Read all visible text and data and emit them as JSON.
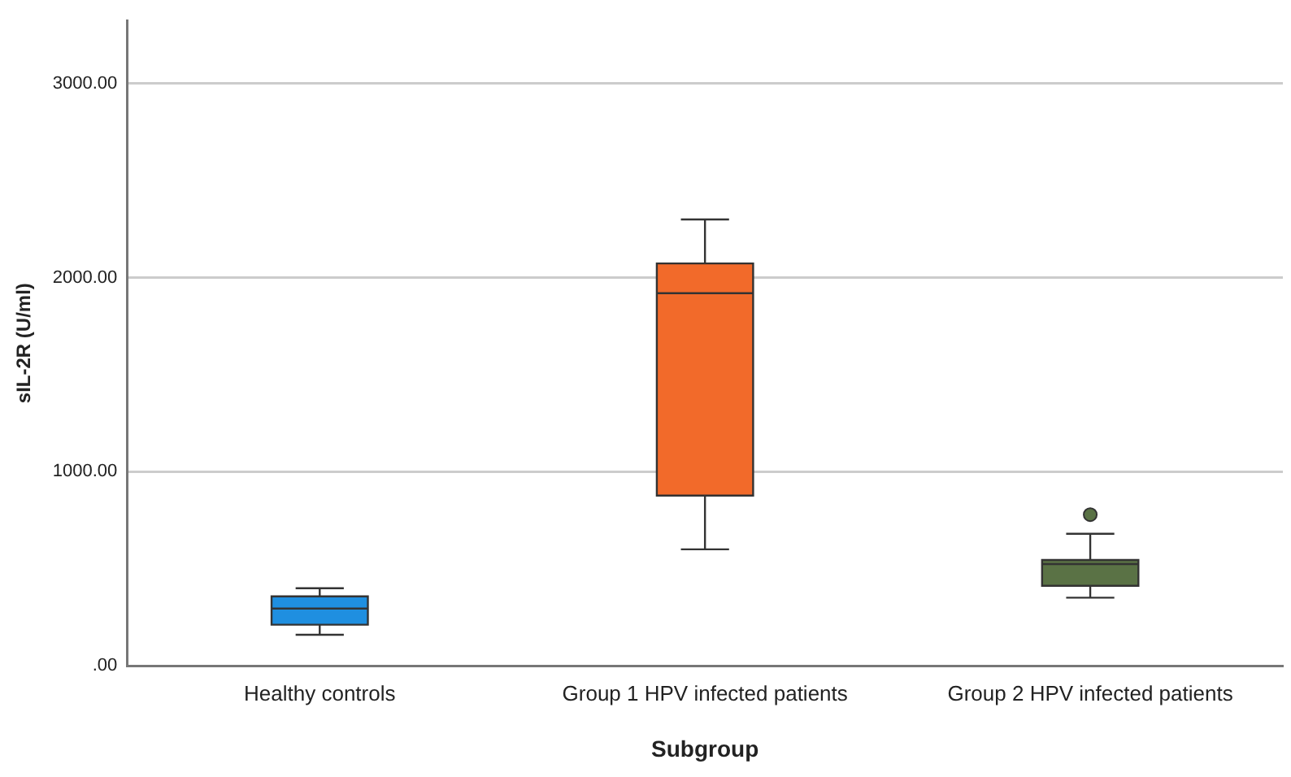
{
  "chart_data": {
    "type": "box",
    "xlabel": "Subgroup",
    "ylabel": "sIL-2R (U/ml)",
    "categories": [
      "Healthy controls",
      "Group 1 HPV infected patients",
      "Group 2 HPV infected patients"
    ],
    "colors": [
      "#1f8fe0",
      "#f26a2a",
      "#5a7245"
    ],
    "boxes": [
      {
        "low": 160,
        "q1": 212,
        "median": 295,
        "q3": 358,
        "high": 400
      },
      {
        "low": 600,
        "q1": 877,
        "median": 1920,
        "q3": 2073,
        "high": 2300
      },
      {
        "low": 351,
        "q1": 412,
        "median": 524,
        "q3": 545,
        "high": 680,
        "outliers": [
          779
        ]
      }
    ],
    "ylim": [
      0,
      3325
    ],
    "yticks": [
      {
        "value": 0,
        "label": ".00"
      },
      {
        "value": 1000,
        "label": "1000.00"
      },
      {
        "value": 2000,
        "label": "2000.00"
      },
      {
        "value": 3000,
        "label": "3000.00"
      }
    ],
    "grid": "y"
  }
}
